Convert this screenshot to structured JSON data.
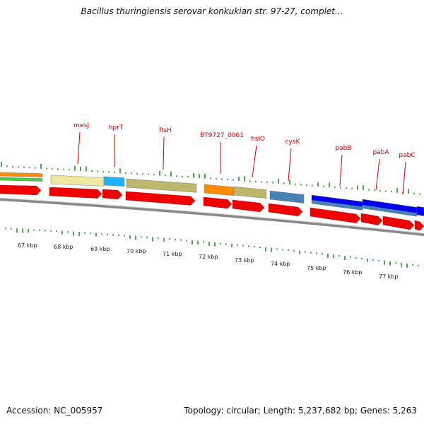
{
  "title": "Bacillus thuringiensis serovar konkukian str. 97-27, complet...",
  "footer": {
    "accession": "Accession: NC_005957",
    "summary": "Topology: circular; Length: 5,237,682 bp; Genes: 5,263"
  },
  "gene_labels": [
    "mesJ",
    "hprT",
    "ftsH",
    "BT9727_0061",
    "hslO",
    "cysK",
    "pabB",
    "pabA",
    "pabC"
  ],
  "scale_labels": [
    "67 kbp",
    "68 kbp",
    "69 kbp",
    "70 kbp",
    "71 kbp",
    "72 kbp",
    "73 kbp",
    "74 kbp",
    "75 kbp",
    "76 kbp",
    "77 kbp"
  ],
  "colors": {
    "cds_arrow": "#ee0000",
    "backbone": "#888888",
    "tick": "#2a8a2a",
    "label": "#cc0000",
    "cog_orange": "#ff8c00",
    "cog_green": "#44cc44",
    "cog_pale_yellow": "#eee8a0",
    "cog_cyan": "#1ab2ff",
    "cog_khaki": "#bdb76b",
    "cog_steelblue": "#4682b4",
    "cog_blue": "#0000ee"
  }
}
